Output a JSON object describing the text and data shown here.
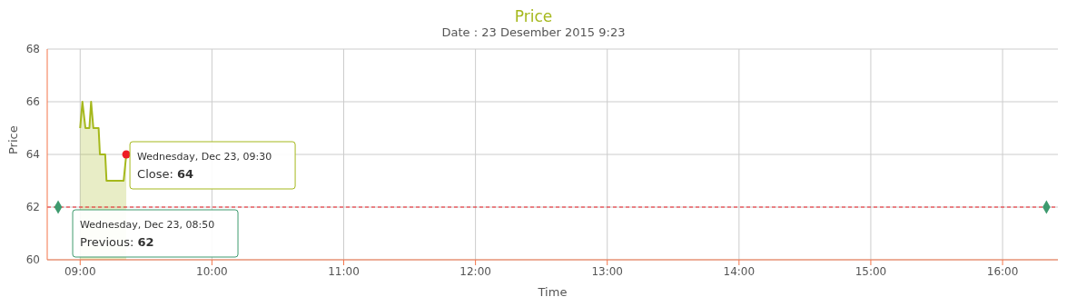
{
  "chart_data": {
    "type": "area",
    "title": "Price",
    "subtitle": "Date : 23 Desember 2015 9:23",
    "xlabel": "Time",
    "ylabel": "Price",
    "xlim": [
      8.75,
      16.42
    ],
    "xticks": [
      {
        "value": 9,
        "label": "09:00"
      },
      {
        "value": 10,
        "label": "10:00"
      },
      {
        "value": 11,
        "label": "11:00"
      },
      {
        "value": 12,
        "label": "12:00"
      },
      {
        "value": 13,
        "label": "13:00"
      },
      {
        "value": 14,
        "label": "14:00"
      },
      {
        "value": 15,
        "label": "15:00"
      },
      {
        "value": 16,
        "label": "16:00"
      }
    ],
    "ylim": [
      60,
      68
    ],
    "yticks": [
      60,
      62,
      64,
      66,
      68
    ],
    "grid": true,
    "series": [
      {
        "color": "#a5b81c",
        "x": [
          9,
          9.017,
          9.04,
          9.07,
          9.083,
          9.1,
          9.14,
          9.15,
          9.19,
          9.2,
          9.33,
          9.35
        ],
        "values": [
          65,
          66,
          65,
          65,
          66,
          65,
          65,
          64,
          64,
          63,
          63,
          64
        ]
      },
      {
        "type": "scatter",
        "marker": "circle",
        "color": "#ee1c25",
        "x": [
          9.35
        ],
        "values": [
          64
        ]
      },
      {
        "type": "scatter",
        "marker": "diamond",
        "color": "#3e9a6e",
        "x": [
          8.833,
          16.333
        ],
        "values": [
          62,
          62
        ]
      }
    ],
    "ref_lines": [
      {
        "axis": "y",
        "value": 62,
        "color": "#ee1c25",
        "line_style": "dashed"
      }
    ],
    "annotations": [
      {
        "text": "Wednesday, Dec 23, 09:30\nClose: 64",
        "x": 9.35,
        "y": 64
      },
      {
        "text": "Wednesday, Dec 23, 08:50\nPrevious: 62",
        "x": 8.833,
        "y": 62
      }
    ]
  }
}
